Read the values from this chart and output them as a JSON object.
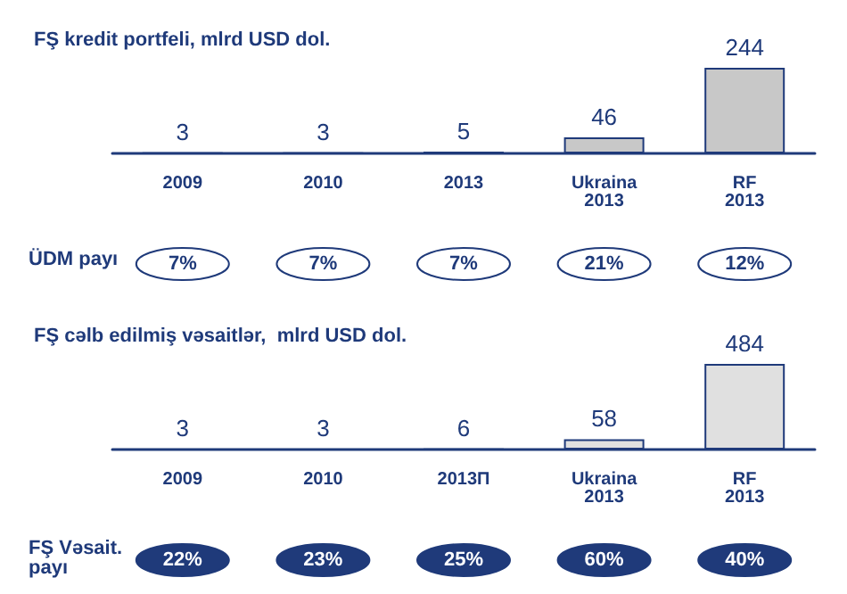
{
  "chart_data": [
    {
      "type": "bar",
      "title": "FŞ kredit portfeli, mlrd USD dol.",
      "categories": [
        "2009",
        "2010",
        "2013",
        "Ukraina\n2013",
        "RF\n2013"
      ],
      "values": [
        3,
        3,
        5,
        46,
        244
      ],
      "colors": [
        "#1f3a7a",
        "#1f3a7a",
        "#1f3a7a",
        "#c8c8c8",
        "#c8c8c8"
      ],
      "data_labels": true,
      "annotations": [
        "ÜDM payı",
        "7%",
        "7%",
        "7%",
        "21%",
        "12%"
      ]
    },
    {
      "type": "bar",
      "title": "FŞ cəlb edilmiş vəsaitlər,  mlrd USD dol.",
      "categories": [
        "2009",
        "2010",
        "2013П",
        "Ukraina\n2013",
        "RF\n2013"
      ],
      "values": [
        3,
        3,
        6,
        58,
        484
      ],
      "colors": [
        "#1f3a7a",
        "#1f3a7a",
        "#1f3a7a",
        "#e0e0e0",
        "#e0e0e0"
      ],
      "data_labels": true,
      "annotations": [
        "FŞ Vəsait.\npayı",
        "22%",
        "23%",
        "25%",
        "60%",
        "40%"
      ]
    }
  ]
}
